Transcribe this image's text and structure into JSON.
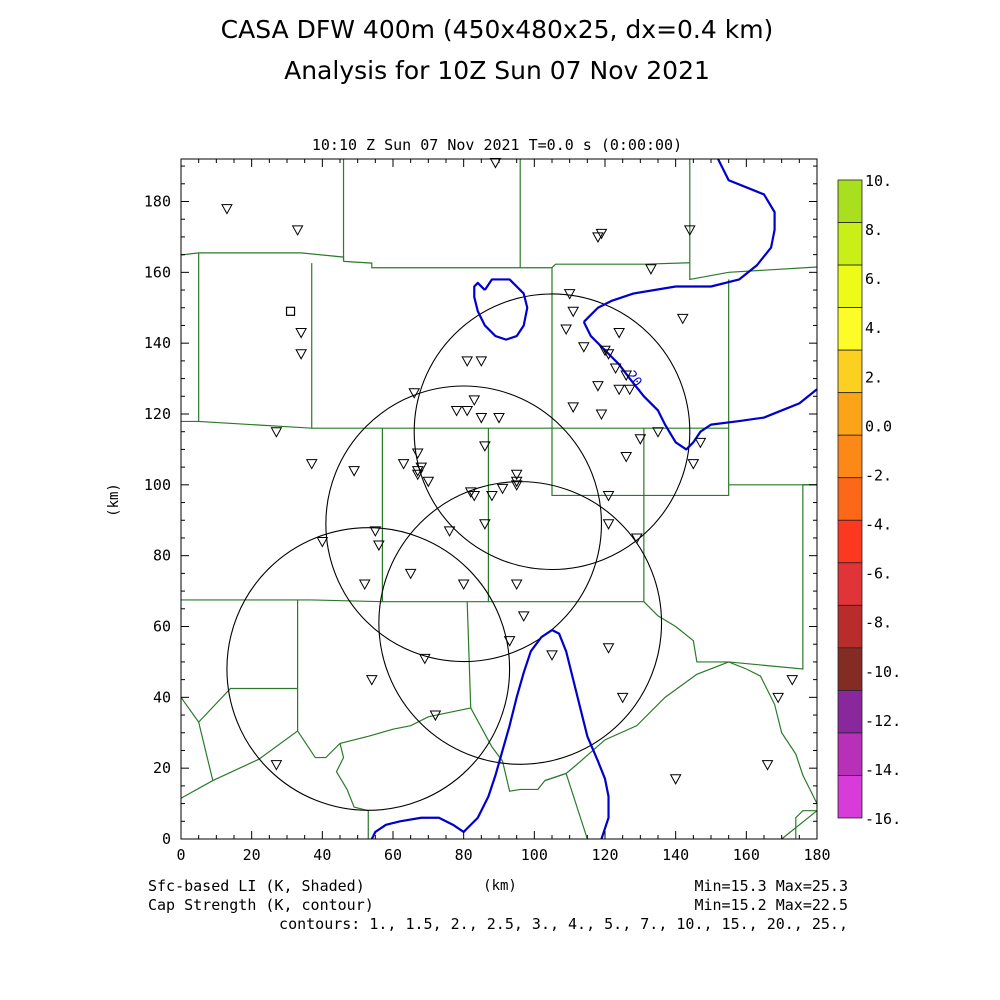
{
  "title": {
    "line1": "CASA DFW 400m (450x480x25, dx=0.4 km)",
    "line2": "Analysis for 10Z Sun 07 Nov 2021"
  },
  "plot": {
    "time_label": "10:10 Z Sun 07 Nov 2021    T=0.0 s (0:00:00)",
    "xlabel": "(km)",
    "ylabel": "(km)",
    "contour_label": "20.",
    "xlim": [
      0,
      180
    ],
    "ylim": [
      0,
      192
    ]
  },
  "footer": {
    "left1": "Sfc-based LI (K, Shaded)",
    "left2": "Cap Strength (K, contour)",
    "right1": "Min=15.3 Max=25.3",
    "right2": "Min=15.2 Max=22.5",
    "contours": "contours: 1., 1.5, 2., 2.5, 3., 4., 5., 7., 10., 15., 20., 25.,"
  },
  "chart_data": {
    "type": "map",
    "x": [
      0,
      20,
      40,
      60,
      80,
      100,
      120,
      140,
      160,
      180
    ],
    "y": [
      0,
      20,
      40,
      60,
      80,
      100,
      120,
      140,
      160,
      180
    ],
    "radar_rings": [
      {
        "cx": 80,
        "cy": 89,
        "r": 39
      },
      {
        "cx": 105,
        "cy": 115,
        "r": 39
      },
      {
        "cx": 96,
        "cy": 61,
        "r": 40
      },
      {
        "cx": 53,
        "cy": 48,
        "r": 40
      }
    ],
    "stations": [
      [
        13,
        178
      ],
      [
        33,
        172
      ],
      [
        89,
        191
      ],
      [
        118,
        170
      ],
      [
        119,
        171
      ],
      [
        144,
        172
      ],
      [
        133,
        161
      ],
      [
        142,
        147
      ],
      [
        110,
        154
      ],
      [
        111,
        149
      ],
      [
        109,
        144
      ],
      [
        34,
        143
      ],
      [
        34,
        137
      ],
      [
        120,
        138
      ],
      [
        114,
        139
      ],
      [
        121,
        137
      ],
      [
        124,
        143
      ],
      [
        81,
        135
      ],
      [
        85,
        135
      ],
      [
        123,
        133
      ],
      [
        126,
        131
      ],
      [
        127,
        127
      ],
      [
        118,
        128
      ],
      [
        124,
        127
      ],
      [
        66,
        126
      ],
      [
        83,
        124
      ],
      [
        78,
        121
      ],
      [
        81,
        121
      ],
      [
        85,
        119
      ],
      [
        90,
        119
      ],
      [
        111,
        122
      ],
      [
        119,
        120
      ],
      [
        27,
        115
      ],
      [
        126,
        108
      ],
      [
        130,
        113
      ],
      [
        135,
        115
      ],
      [
        147,
        112
      ],
      [
        86,
        111
      ],
      [
        67,
        109
      ],
      [
        37,
        106
      ],
      [
        49,
        104
      ],
      [
        63,
        106
      ],
      [
        67,
        104
      ],
      [
        68,
        105
      ],
      [
        67,
        103
      ],
      [
        70,
        101
      ],
      [
        95,
        103
      ],
      [
        95,
        101
      ],
      [
        95,
        100
      ],
      [
        91,
        99
      ],
      [
        82,
        98
      ],
      [
        83,
        97
      ],
      [
        88,
        97
      ],
      [
        145,
        106
      ],
      [
        121,
        97
      ],
      [
        121,
        89
      ],
      [
        86,
        89
      ],
      [
        129,
        85
      ],
      [
        76,
        87
      ],
      [
        55,
        87
      ],
      [
        56,
        83
      ],
      [
        40,
        84
      ],
      [
        65,
        75
      ],
      [
        52,
        72
      ],
      [
        80,
        72
      ],
      [
        95,
        72
      ],
      [
        97,
        63
      ],
      [
        93,
        56
      ],
      [
        105,
        52
      ],
      [
        121,
        54
      ],
      [
        69,
        51
      ],
      [
        54,
        45
      ],
      [
        125,
        40
      ],
      [
        72,
        35
      ],
      [
        173,
        45
      ],
      [
        169,
        40
      ],
      [
        27,
        21
      ],
      [
        166,
        21
      ],
      [
        140,
        17
      ]
    ],
    "square_station": [
      31,
      149
    ],
    "li_colorbar": {
      "labels": [
        "10.",
        "8.",
        "6.",
        "4.",
        "2.",
        "0.0",
        "-2.",
        "-4.",
        "-6.",
        "-8.",
        "-10.",
        "-12.",
        "-14.",
        "-16."
      ],
      "colors": [
        "#a8e020",
        "#c8f018",
        "#ecfc18",
        "#fcfc28",
        "#fcd020",
        "#fca418",
        "#fc8818",
        "#fc6818",
        "#fc3820",
        "#e03438",
        "#b82c2c",
        "#842c24",
        "#88289c",
        "#b830b8",
        "#d83cd8"
      ]
    },
    "colors": {
      "county_lines": "#2a7a2a",
      "cap_contour": "#0000cc",
      "rings": "#000000"
    }
  }
}
